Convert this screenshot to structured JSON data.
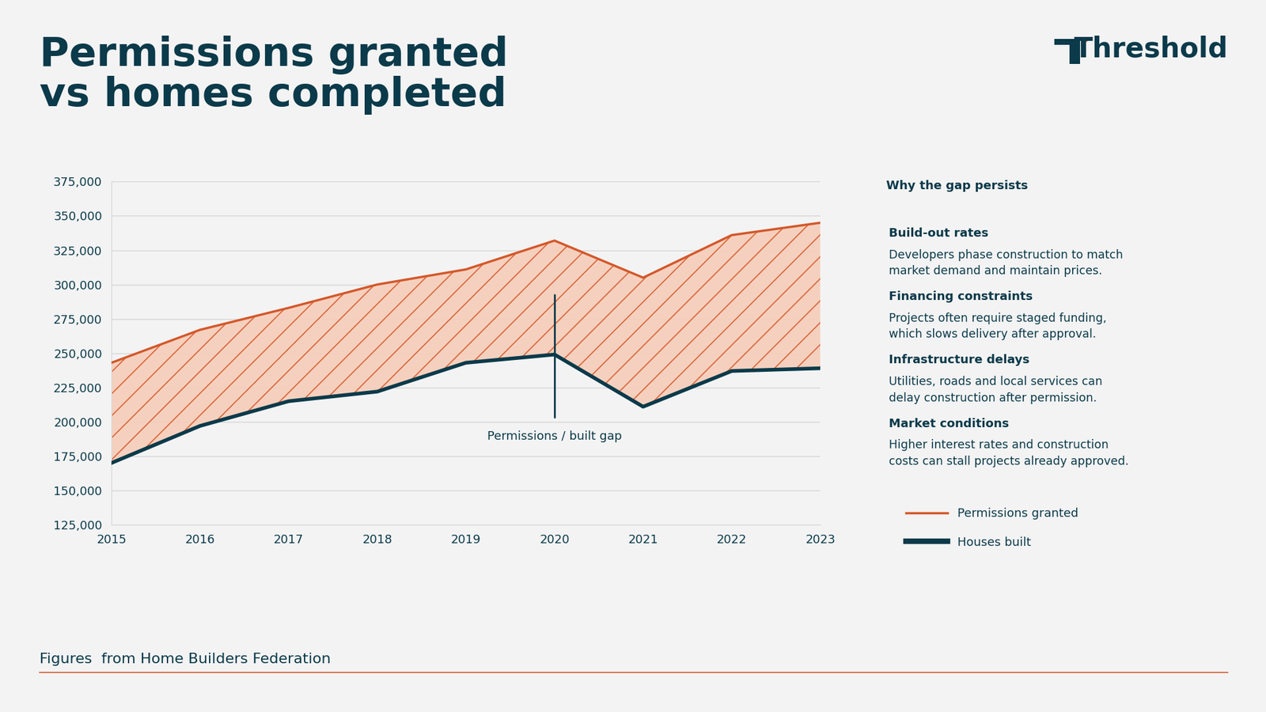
{
  "chart_data": {
    "type": "line",
    "title": "Permissions granted\nvs homes completed",
    "x": [
      2015,
      2016,
      2017,
      2018,
      2019,
      2020,
      2021,
      2022,
      2023
    ],
    "series": [
      {
        "name": "Permissions granted",
        "color": "#d4582a",
        "values": [
          243000,
          267000,
          283000,
          300000,
          311000,
          332000,
          305000,
          336000,
          345000
        ]
      },
      {
        "name": "Houses built",
        "color": "#0b3a4a",
        "values": [
          170000,
          197000,
          215000,
          222000,
          243000,
          249000,
          211000,
          237000,
          239000
        ]
      }
    ],
    "xlim": [
      2015,
      2023
    ],
    "xticks": [
      2015,
      2016,
      2017,
      2018,
      2019,
      2020,
      2021,
      2022,
      2023
    ],
    "ylim": [
      125000,
      375000
    ],
    "yticks": [
      {
        "value": 125000,
        "label": "125,000"
      },
      {
        "value": 150000,
        "label": "150,000"
      },
      {
        "value": 175000,
        "label": "175,000"
      },
      {
        "value": 200000,
        "label": "200,000"
      },
      {
        "value": 225000,
        "label": "225,000"
      },
      {
        "value": 250000,
        "label": "250,000"
      },
      {
        "value": 275000,
        "label": "275,000"
      },
      {
        "value": 300000,
        "label": "300,000"
      },
      {
        "value": 325000,
        "label": "325,000"
      },
      {
        "value": 350000,
        "label": "350,000"
      },
      {
        "value": 375000,
        "label": "375,000"
      }
    ],
    "grid": true,
    "legend": "lower right",
    "annotation": {
      "text": "Permissions / built gap",
      "x": 2020,
      "y": [
        203000,
        293000
      ]
    }
  },
  "brand": "Threshold",
  "sidebar": {
    "title": "Why the gap persists",
    "items": [
      {
        "heading": "Build-out rates",
        "text": "Developers phase construction to match\nmarket demand and maintain prices."
      },
      {
        "heading": "Financing constraints",
        "text": "Projects often require staged funding,\nwhich slows delivery after approval."
      },
      {
        "heading": "Infrastructure delays",
        "text": "Utilities, roads and local services can\ndelay construction after permission."
      },
      {
        "heading": "Market conditions",
        "text": "Higher interest rates and construction\ncosts can stall projects already approved."
      }
    ]
  },
  "source": "Figures  from Home Builders Federation"
}
